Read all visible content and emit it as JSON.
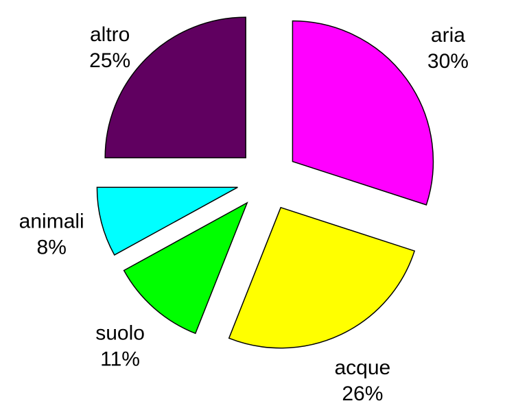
{
  "chart_data": {
    "type": "pie",
    "categories": [
      "aria",
      "acque",
      "suolo",
      "animali",
      "altro"
    ],
    "values": [
      30,
      26,
      11,
      8,
      25
    ],
    "value_labels": [
      "30%",
      "26%",
      "11%",
      "8%",
      "25%"
    ],
    "colors": [
      "#ff00ff",
      "#ffff00",
      "#00ff00",
      "#00ffff",
      "#600060"
    ],
    "exploded": true
  }
}
